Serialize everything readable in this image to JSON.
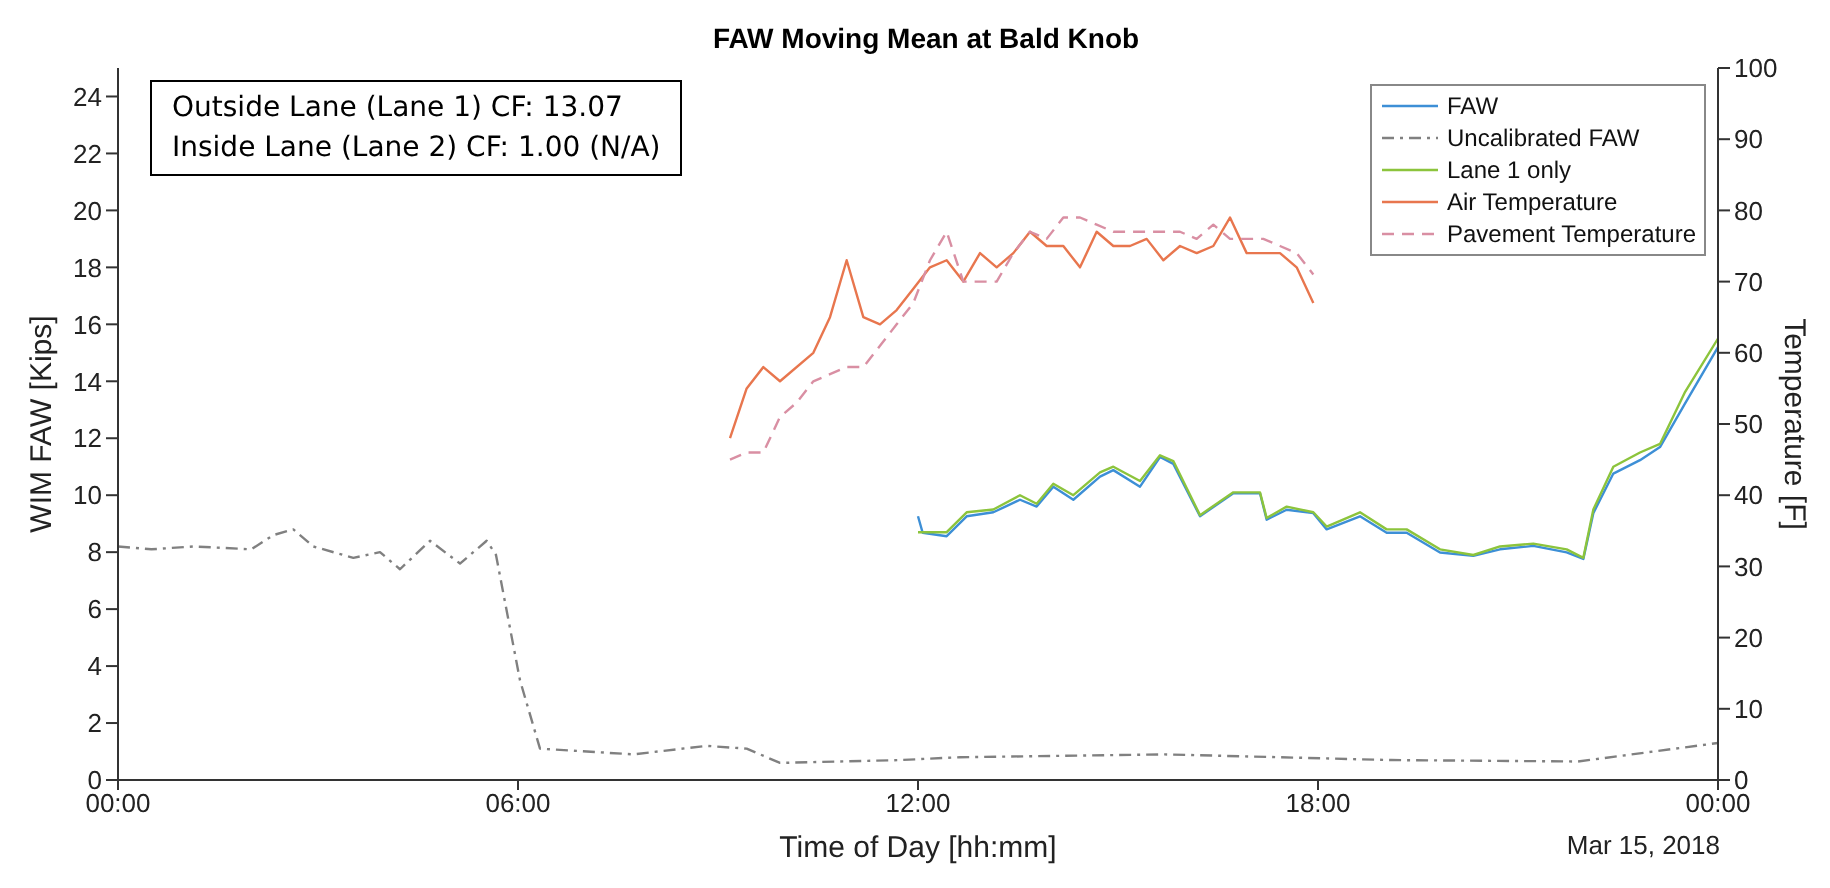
{
  "chart_data": {
    "type": "line",
    "title": "FAW Moving Mean at Bald Knob",
    "xlabel": "Time of Day [hh:mm]",
    "ylabel": "WIM FAW [Kips]",
    "y2label": "Temperature [F]",
    "annotations": [
      "Outside Lane (Lane 1) CF: 13.07",
      "Inside Lane (Lane 2) CF: 1.00 (N/A)",
      "Mar 15, 2018"
    ],
    "xlim": [
      0,
      24
    ],
    "xticks": [
      {
        "value": 0,
        "label": "00:00"
      },
      {
        "value": 6,
        "label": "06:00"
      },
      {
        "value": 12,
        "label": "12:00"
      },
      {
        "value": 18,
        "label": "18:00"
      },
      {
        "value": 24,
        "label": "00:00"
      }
    ],
    "ylim": [
      0,
      25
    ],
    "yticks": [
      0,
      2,
      4,
      6,
      8,
      10,
      12,
      14,
      16,
      18,
      20,
      22,
      24
    ],
    "y2lim": [
      0,
      100
    ],
    "y2ticks": [
      0,
      10,
      20,
      30,
      40,
      50,
      60,
      70,
      80,
      90,
      100
    ],
    "grid": false,
    "legend": "top right",
    "series": [
      {
        "name": "FAW",
        "color": "#3d8fd6",
        "line_style": "solid",
        "x": [
          12.0,
          12.07,
          12.43,
          12.73,
          13.13,
          13.53,
          13.78,
          14.03,
          14.33,
          14.73,
          14.93,
          15.33,
          15.63,
          15.83,
          16.23,
          16.73,
          17.13,
          17.23,
          17.53,
          17.93,
          18.13,
          18.63,
          19.03,
          19.33,
          19.83,
          20.33,
          20.73,
          21.23,
          21.73,
          21.98,
          22.13,
          22.43,
          22.83,
          23.13,
          23.5,
          24.0
        ],
        "values": [
          9.26,
          8.68,
          8.56,
          9.26,
          9.4,
          9.84,
          9.6,
          10.3,
          9.84,
          10.65,
          10.88,
          10.3,
          11.34,
          11.1,
          9.26,
          10.07,
          10.07,
          9.14,
          9.49,
          9.37,
          8.8,
          9.26,
          8.68,
          8.68,
          7.99,
          7.87,
          8.1,
          8.22,
          7.99,
          7.76,
          9.37,
          10.76,
          11.23,
          11.69,
          13.2,
          15.2
        ]
      },
      {
        "name": "Uncalibrated FAW",
        "color": "#808080",
        "line_style": "dashdot",
        "x": [
          0,
          0.5,
          1.13,
          2.0,
          2.33,
          2.63,
          2.93,
          3.53,
          3.93,
          4.23,
          4.68,
          5.13,
          5.53,
          5.67,
          6.03,
          6.33,
          7.73,
          8.83,
          9.43,
          9.93,
          11.73,
          12.63,
          15.7,
          19.1,
          21.9,
          24.0
        ],
        "values": [
          8.2,
          8.1,
          8.2,
          8.1,
          8.6,
          8.8,
          8.2,
          7.8,
          8.0,
          7.4,
          8.4,
          7.6,
          8.4,
          7.9,
          3.5,
          1.1,
          0.9,
          1.2,
          1.1,
          0.6,
          0.7,
          0.8,
          0.9,
          0.7,
          0.65,
          1.3
        ]
      },
      {
        "name": "Lane 1 only",
        "color": "#8cc43c",
        "line_style": "solid",
        "x": [
          12.0,
          12.43,
          12.73,
          13.13,
          13.53,
          13.78,
          14.03,
          14.33,
          14.73,
          14.93,
          15.33,
          15.63,
          15.83,
          16.23,
          16.73,
          17.13,
          17.23,
          17.53,
          17.93,
          18.13,
          18.63,
          19.03,
          19.33,
          19.83,
          20.33,
          20.73,
          21.23,
          21.73,
          21.98,
          22.13,
          22.43,
          22.83,
          23.13,
          23.5,
          24.0
        ],
        "values": [
          8.7,
          8.7,
          9.4,
          9.5,
          10.0,
          9.7,
          10.4,
          10.0,
          10.8,
          11.0,
          10.5,
          11.4,
          11.2,
          9.3,
          10.1,
          10.1,
          9.2,
          9.6,
          9.4,
          8.9,
          9.4,
          8.8,
          8.8,
          8.1,
          7.9,
          8.2,
          8.3,
          8.1,
          7.8,
          9.5,
          11.0,
          11.5,
          11.8,
          13.6,
          15.5
        ]
      },
      {
        "name": "Air Temperature",
        "color": "#e8764e",
        "axis": "y2",
        "line_style": "solid",
        "x": [
          9.18,
          9.43,
          9.68,
          9.93,
          10.43,
          10.68,
          10.93,
          11.18,
          11.43,
          11.68,
          11.93,
          12.18,
          12.43,
          12.68,
          12.93,
          13.18,
          13.43,
          13.68,
          13.93,
          14.18,
          14.43,
          14.68,
          14.93,
          15.18,
          15.43,
          15.68,
          15.93,
          16.18,
          16.43,
          16.68,
          16.93,
          17.18,
          17.43,
          17.68,
          17.93
        ],
        "values": [
          48,
          55,
          58,
          56,
          60,
          65,
          73,
          65,
          64,
          66,
          69,
          72,
          73,
          70,
          74,
          72,
          74,
          77,
          75,
          75,
          72,
          77,
          75,
          75,
          76,
          73,
          75,
          74,
          75,
          79,
          74,
          74,
          74,
          72,
          67
        ]
      },
      {
        "name": "Pavement Temperature",
        "color": "#d98fa3",
        "axis": "y2",
        "line_style": "dashed",
        "x": [
          9.18,
          9.43,
          9.68,
          9.93,
          10.18,
          10.43,
          10.68,
          10.93,
          11.18,
          11.43,
          11.68,
          11.93,
          12.18,
          12.43,
          12.68,
          12.93,
          13.18,
          13.43,
          13.68,
          13.93,
          14.18,
          14.43,
          14.68,
          14.93,
          15.18,
          15.43,
          15.68,
          15.93,
          16.18,
          16.43,
          16.68,
          16.93,
          17.18,
          17.43,
          17.68,
          17.93
        ],
        "values": [
          45,
          46,
          46,
          51,
          53,
          56,
          57,
          58,
          58,
          61,
          64,
          67,
          73,
          77,
          70,
          70,
          70,
          74,
          77,
          76,
          79,
          79,
          78,
          77,
          77,
          77,
          77,
          77,
          76,
          78,
          76,
          76,
          76,
          75,
          74,
          71
        ]
      }
    ]
  }
}
